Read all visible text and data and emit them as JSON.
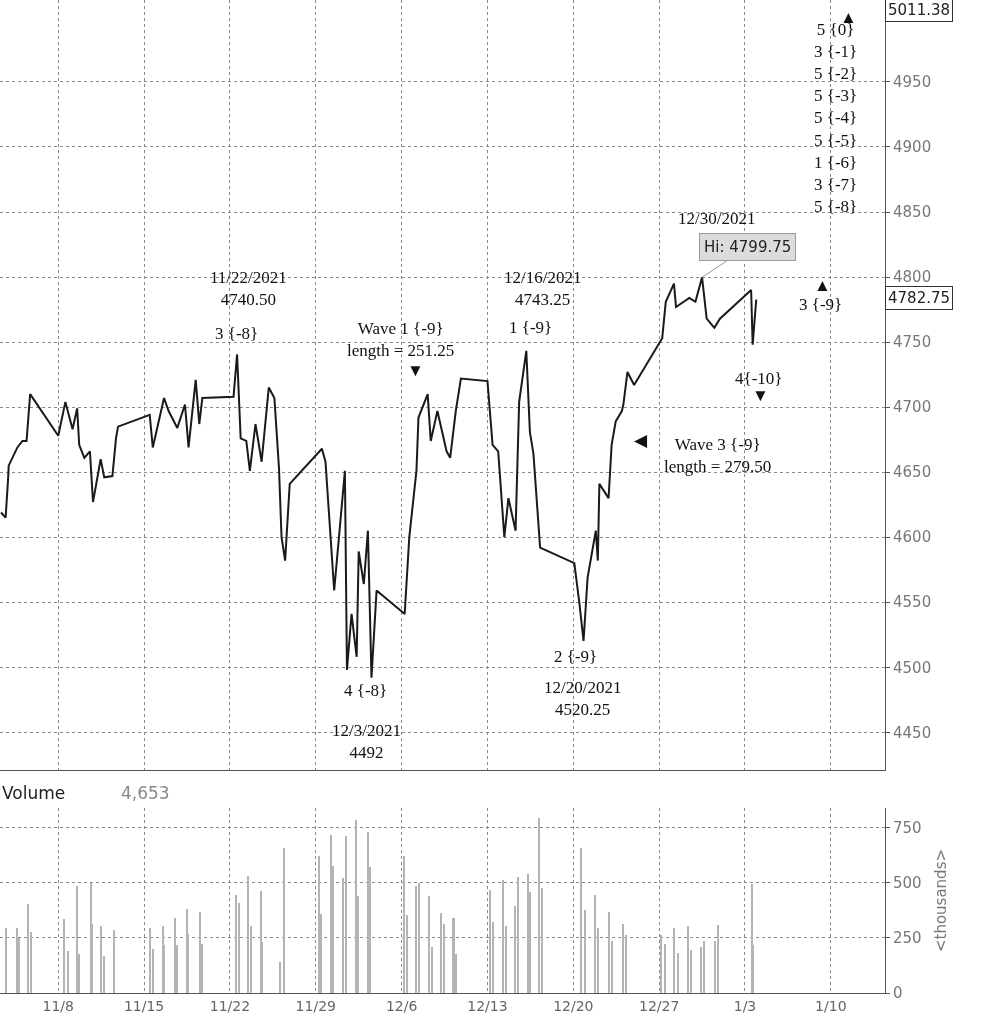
{
  "chart_data": [
    {
      "type": "line",
      "xlim": [
        "2021-11-03T06:00",
        "2022-01-14T10:00"
      ],
      "ylim": [
        4421,
        5013
      ],
      "yticks": [
        4450,
        4500,
        4550,
        4600,
        4650,
        4700,
        4750,
        4800,
        4850,
        4900,
        4950
      ],
      "xticks": [
        {
          "value": "2021-11-08",
          "label": null
        },
        {
          "value": "2021-11-15",
          "label": null
        },
        {
          "value": "2021-11-22",
          "label": null
        },
        {
          "value": "2021-11-29",
          "label": null
        },
        {
          "value": "2021-12-06",
          "label": null
        },
        {
          "value": "2021-12-13",
          "label": null
        },
        {
          "value": "2021-12-20",
          "label": null
        },
        {
          "value": "2021-12-27",
          "label": null
        },
        {
          "value": "2022-01-03",
          "label": null
        },
        {
          "value": "2022-01-10",
          "label": null
        }
      ],
      "tick_labels": "y",
      "grid": true,
      "marker": "none",
      "line_style": "solid",
      "series": [
        {
          "color": "#1a1a1a",
          "x": [
            "2021-11-03T08:00",
            "2021-11-03T17:00",
            "2021-11-03T22:00",
            "2021-11-03T23:00",
            "2021-11-04T16:00",
            "2021-11-05T02:00",
            "2021-11-05T10:00",
            "2021-11-05T17:00",
            "2021-11-08T00:00",
            "2021-11-08T14:00",
            "2021-11-09T04:00",
            "2021-11-09T13:00",
            "2021-11-09T17:00",
            "2021-11-10T03:00",
            "2021-11-10T14:00",
            "2021-11-10T20:00",
            "2021-11-11T11:00",
            "2021-11-11T18:00",
            "2021-11-12T10:00",
            "2021-11-12T17:00",
            "2021-11-12T21:00",
            "2021-11-15T11:00",
            "2021-11-15T17:00",
            "2021-11-16T15:00",
            "2021-11-17T00:00",
            "2021-11-17T17:00",
            "2021-11-18T08:00",
            "2021-11-18T15:00",
            "2021-11-19T05:00",
            "2021-11-19T12:00",
            "2021-11-19T18:00",
            "2021-11-22T07:00",
            "2021-11-22T14:00",
            "2021-11-22T21:00",
            "2021-11-23T08:00",
            "2021-11-23T15:00",
            "2021-11-24T02:00",
            "2021-11-24T14:00",
            "2021-11-25T04:00",
            "2021-11-25T15:00",
            "2021-11-26T00:00",
            "2021-11-26T05:00",
            "2021-11-26T12:00",
            "2021-11-26T21:00",
            "2021-11-29T12:00",
            "2021-11-29T19:00",
            "2021-11-30T12:00",
            "2021-12-01T09:00",
            "2021-12-01T13:00",
            "2021-12-01T22:00",
            "2021-12-02T08:00",
            "2021-12-02T12:00",
            "2021-12-02T22:00",
            "2021-12-03T06:00",
            "2021-12-03T13:00",
            "2021-12-03T23:00",
            "2021-12-06T06:00",
            "2021-12-06T15:00",
            "2021-12-07T05:00",
            "2021-12-07T09:00",
            "2021-12-08T03:00",
            "2021-12-08T09:00",
            "2021-12-08T22:00",
            "2021-12-09T16:00",
            "2021-12-09T23:00",
            "2021-12-10T10:00",
            "2021-12-10T20:00",
            "2021-12-13T00:00",
            "2021-12-13T10:00",
            "2021-12-13T21:00",
            "2021-12-14T09:00",
            "2021-12-14T17:00",
            "2021-12-15T07:00",
            "2021-12-15T14:00",
            "2021-12-16T04:00",
            "2021-12-16T11:00",
            "2021-12-16T18:00",
            "2021-12-17T07:00",
            "2021-12-20T02:00",
            "2021-12-20T12:00",
            "2021-12-20T20:00",
            "2021-12-21T04:00",
            "2021-12-21T20:00",
            "2021-12-22T00:00",
            "2021-12-22T03:00",
            "2021-12-22T21:00",
            "2021-12-23T03:00",
            "2021-12-23T11:00",
            "2021-12-23T23:00",
            "2021-12-24T02:00",
            "2021-12-24T10:00",
            "2021-12-24T23:00",
            "2021-12-27T06:00",
            "2021-12-27T13:00",
            "2021-12-28T05:00",
            "2021-12-28T09:00",
            "2021-12-29T11:00",
            "2021-12-29T23:00",
            "2021-12-30T12:00",
            "2021-12-30T21:00",
            "2021-12-31T12:00",
            "2021-12-31T23:00",
            "2022-01-03T12:00",
            "2022-01-03T15:00",
            "2022-01-03T22:00"
          ],
          "values": [
            4619,
            4615,
            4646,
            4655,
            4669,
            4674,
            4674,
            4710,
            4678,
            4704,
            4683,
            4699,
            4671,
            4661,
            4666,
            4627,
            4660,
            4646,
            4647,
            4676,
            4685,
            4694,
            4669,
            4707,
            4697,
            4684,
            4702,
            4669,
            4721,
            4687,
            4707,
            4708,
            4740.5,
            4676,
            4674,
            4651,
            4687,
            4658,
            4715,
            4707,
            4653,
            4600,
            4582,
            4641,
            4668,
            4658,
            4559,
            4651,
            4498,
            4541,
            4508,
            4589,
            4564,
            4605,
            4492,
            4559,
            4541,
            4600,
            4651,
            4692,
            4710,
            4674,
            4697,
            4666,
            4661,
            4697,
            4722,
            4720,
            4671,
            4666,
            4600,
            4630,
            4605,
            4704,
            4743.25,
            4681,
            4664,
            4592,
            4580,
            4549,
            4520.25,
            4569,
            4605,
            4582,
            4641,
            4630,
            4671,
            4689,
            4697,
            4702,
            4727,
            4717,
            4753,
            4781,
            4795,
            4777,
            4784,
            4781,
            4799.75,
            4768,
            4761,
            4768,
            4790,
            4748,
            4782.75
          ]
        }
      ],
      "annotations": [
        "5011.38",
        "4782.75",
        "12/30/2021",
        "11/22/2021\n4740.50",
        "3 {-8}",
        "Wave 1 {-9}\nlength = 251.25",
        "▼",
        "12/16/2021\n4743.25",
        "1 {-9}",
        "4 {-8}",
        "12/3/2021\n4492",
        "2 {-9}",
        "12/20/2021\n4520.25",
        "◀",
        "Wave 3 {-9}\nlength = 279.50",
        "4{-10}",
        "▼",
        "3 {-9}",
        "▲",
        "5 {0}\n3 {-1}\n5 {-2}\n5 {-3}\n5 {-4}\n5 {-5}\n1 {-6}\n3 {-7}\n5 {-8}",
        "▲",
        {
          "text": "Hi: 4799.75",
          "x": "2021-12-30T12:00",
          "y": 4799.75
        }
      ]
    },
    {
      "type": "bar",
      "title": "Volume",
      "subtitle": "4,653",
      "ylabel": "<thousands>",
      "xlim": [
        "2021-11-03T06:00",
        "2022-01-14T10:00"
      ],
      "ylim": [
        0,
        840
      ],
      "yticks": [
        0,
        250,
        500,
        750
      ],
      "xticks": [
        {
          "value": "2021-11-08",
          "label": "11/8"
        },
        {
          "value": "2021-11-15",
          "label": "11/15"
        },
        {
          "value": "2021-11-22",
          "label": "11/22"
        },
        {
          "value": "2021-11-29",
          "label": "11/29"
        },
        {
          "value": "2021-12-06",
          "label": "12/6"
        },
        {
          "value": "2021-12-13",
          "label": "12/13"
        },
        {
          "value": "2021-12-20",
          "label": "12/20"
        },
        {
          "value": "2021-12-27",
          "label": "12/27"
        },
        {
          "value": "2022-01-03",
          "label": "1/3"
        },
        {
          "value": "2022-01-10",
          "label": "1/10"
        }
      ],
      "grid": true,
      "series": [
        {
          "color": "#b4b4b4",
          "x": [
            "2021-11-03T19:00",
            "2021-11-04T15:00",
            "2021-11-04T19:00",
            "2021-11-05T14:00",
            "2021-11-05T20:00",
            "2021-11-08T12:00",
            "2021-11-08T19:00",
            "2021-11-09T13:00",
            "2021-11-09T18:00",
            "2021-11-10T17:00",
            "2021-11-10T18:00",
            "2021-11-11T12:00",
            "2021-11-11T18:00",
            "2021-11-12T14:00",
            "2021-11-15T12:00",
            "2021-11-15T18:00",
            "2021-11-16T13:00",
            "2021-11-16T16:00",
            "2021-11-17T13:00",
            "2021-11-17T16:00",
            "2021-11-18T12:00",
            "2021-11-18T15:00",
            "2021-11-19T13:00",
            "2021-11-19T18:00",
            "2021-11-22T12:00",
            "2021-11-22T19:00",
            "2021-11-23T12:00",
            "2021-11-23T17:00",
            "2021-11-24T13:00",
            "2021-11-24T16:00",
            "2021-11-26T03:00",
            "2021-11-26T10:00",
            "2021-11-29T06:00",
            "2021-11-29T11:00",
            "2021-11-30T06:00",
            "2021-11-30T11:00",
            "2021-12-01T06:00",
            "2021-12-01T11:00",
            "2021-12-02T07:00",
            "2021-12-02T11:00",
            "2021-12-03T06:00",
            "2021-12-03T11:00",
            "2021-12-06T06:00",
            "2021-12-06T11:00",
            "2021-12-07T05:00",
            "2021-12-07T11:00",
            "2021-12-08T06:00",
            "2021-12-08T12:00",
            "2021-12-09T06:00",
            "2021-12-09T12:00",
            "2021-12-10T06:00",
            "2021-12-10T11:00",
            "2021-12-13T06:00",
            "2021-12-13T12:00",
            "2021-12-14T06:00",
            "2021-12-14T12:00",
            "2021-12-15T06:00",
            "2021-12-15T12:00",
            "2021-12-16T07:00",
            "2021-12-16T12:00",
            "2021-12-17T06:00",
            "2021-12-17T12:00",
            "2021-12-20T16:00",
            "2021-12-20T23:00",
            "2021-12-21T19:00",
            "2021-12-22T01:00",
            "2021-12-22T23:00",
            "2021-12-23T05:00",
            "2021-12-24T02:00",
            "2021-12-24T08:00",
            "2021-12-27T05:00",
            "2021-12-27T11:00",
            "2021-12-28T06:00",
            "2021-12-28T13:00",
            "2021-12-29T09:00",
            "2021-12-29T15:00",
            "2021-12-30T11:00",
            "2021-12-30T17:00",
            "2021-12-31T13:00",
            "2021-12-31T20:00",
            "2022-01-03T14:00",
            "2022-01-03T17:00"
          ],
          "values": [
            295,
            295,
            250,
            406,
            277,
            335,
            189,
            486,
            179,
            500,
            315,
            303,
            170,
            288,
            295,
            201,
            303,
            217,
            341,
            217,
            380,
            270,
            368,
            224,
            447,
            409,
            532,
            303,
            463,
            232,
            141,
            659,
            624,
            360,
            718,
            577,
            520,
            714,
            785,
            440,
            732,
            573,
            624,
            353,
            486,
            501,
            440,
            209,
            364,
            315,
            341,
            176,
            467,
            323,
            512,
            305,
            394,
            527,
            539,
            459,
            795,
            477,
            659,
            376,
            447,
            295,
            368,
            235,
            315,
            262,
            262,
            221,
            295,
            183,
            303,
            197,
            209,
            235,
            237,
            307,
            493,
            217
          ]
        }
      ]
    }
  ]
}
